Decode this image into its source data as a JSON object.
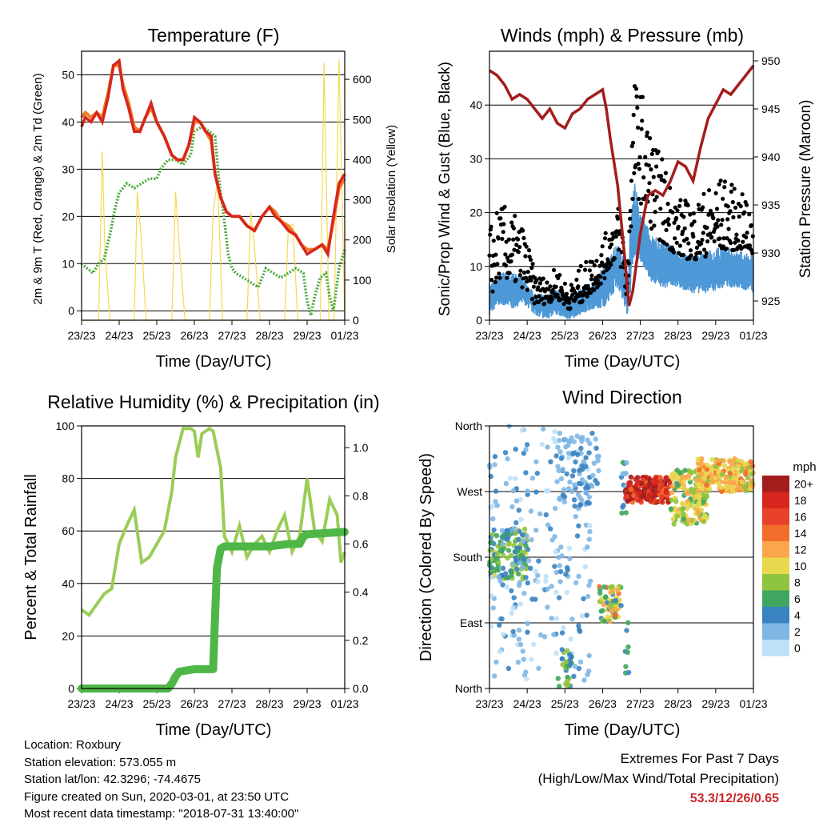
{
  "panels": {
    "temperature": {
      "title": "Temperature (F)",
      "xlabel": "Time (Day/UTC)",
      "ylabel_left": "2m & 9m T (Red, Orange) & 2m Td (Green)",
      "ylabel_right": "Solar Insolation (Yellow)"
    },
    "winds": {
      "title": "Winds (mph) & Pressure (mb)",
      "xlabel": "Time (Day/UTC)",
      "ylabel_left": "Sonic/Prop Wind & Gust (Blue, Black)",
      "ylabel_right": "Station Pressure (Maroon)"
    },
    "humidity": {
      "title": "Relative Humidity (%) & Precipitation (in)",
      "xlabel": "Time (Day/UTC)",
      "ylabel_left": "Percent & Total Rainfall"
    },
    "direction": {
      "title": "Wind Direction",
      "xlabel": "Time (Day/UTC)",
      "ylabel_left": "Direction (Colored By Speed)",
      "legend_title": "mph"
    }
  },
  "footer": {
    "location": "Location: Roxbury",
    "elevation": "Station elevation: 573.055 m",
    "latlon": "Station lat/lon: 42.3296; -74.4675",
    "created": "Figure created on Sun, 2020-03-01, at 23:50 UTC",
    "timestamp": "Most recent data timestamp: \"2018-07-31 13:40:00\"",
    "extremes_title": "Extremes For Past 7 Days",
    "extremes_sub": "(High/Low/Max Wind/Total Precipitation)",
    "extremes_values": "53.3/12/26/0.65"
  },
  "chart_data": [
    {
      "id": "temperature",
      "type": "line",
      "x_ticks": [
        "23/23",
        "24/23",
        "25/23",
        "26/23",
        "27/23",
        "28/23",
        "29/23",
        "01/23"
      ],
      "xlim": [
        0,
        7
      ],
      "ylim": [
        -2,
        55
      ],
      "y_ticks": [
        0,
        10,
        20,
        30,
        40,
        50
      ],
      "y2lim": [
        0,
        670
      ],
      "y2_ticks": [
        0,
        100,
        200,
        300,
        400,
        500,
        600
      ],
      "grid_y": true,
      "colors": {
        "t2m": "#d7261e",
        "t9m": "#f07e26",
        "td2m": "#4aa83c",
        "solar": "#f7d854"
      },
      "series": [
        {
          "key": "t2m",
          "x": [
            0,
            0.1,
            0.25,
            0.4,
            0.55,
            0.7,
            0.85,
            1.0,
            1.1,
            1.25,
            1.4,
            1.55,
            1.7,
            1.85,
            2.0,
            2.2,
            2.4,
            2.55,
            2.7,
            2.85,
            3.0,
            3.15,
            3.3,
            3.45,
            3.55,
            3.7,
            3.85,
            4.0,
            4.2,
            4.4,
            4.6,
            4.8,
            5.0,
            5.15,
            5.3,
            5.5,
            5.7,
            5.85,
            6.0,
            6.2,
            6.4,
            6.55,
            6.7,
            6.85,
            7.0
          ],
          "y": [
            39,
            41,
            40,
            42,
            40,
            45,
            52,
            53,
            47,
            43,
            38,
            38,
            41,
            44,
            40,
            37,
            33,
            32,
            32,
            35,
            41,
            40,
            38,
            37,
            29,
            24,
            21,
            20,
            20,
            18,
            17,
            20,
            22,
            20,
            19,
            17,
            16,
            14,
            12,
            13,
            14,
            12,
            20,
            27,
            29
          ]
        },
        {
          "key": "t9m",
          "x": [
            0,
            0.1,
            0.25,
            0.4,
            0.55,
            0.7,
            0.85,
            1.0,
            1.1,
            1.25,
            1.4,
            1.55,
            1.7,
            1.85,
            2.0,
            2.2,
            2.4,
            2.55,
            2.7,
            2.85,
            3.0,
            3.15,
            3.3,
            3.45,
            3.55,
            3.7,
            3.85,
            4.0,
            4.2,
            4.4,
            4.6,
            4.8,
            5.0,
            5.15,
            5.3,
            5.5,
            5.7,
            5.85,
            6.0,
            6.2,
            6.4,
            6.55,
            6.7,
            6.85,
            7.0
          ],
          "y": [
            41,
            42,
            41,
            42,
            41,
            46,
            52,
            52,
            48,
            44,
            39,
            38,
            41,
            43,
            40,
            37,
            33,
            32,
            32,
            35,
            40,
            40,
            38,
            36,
            29,
            24,
            21,
            20,
            20,
            18,
            17,
            20,
            22,
            21,
            19,
            18,
            16,
            14,
            13,
            13,
            14,
            13,
            19,
            26,
            28
          ]
        },
        {
          "key": "td2m",
          "x": [
            0,
            0.15,
            0.3,
            0.45,
            0.6,
            0.75,
            0.9,
            1.0,
            1.2,
            1.4,
            1.6,
            1.8,
            2.0,
            2.1,
            2.3,
            2.5,
            2.7,
            2.9,
            3.0,
            3.2,
            3.4,
            3.55,
            3.65,
            3.8,
            3.9,
            4.0,
            4.1,
            4.3,
            4.5,
            4.7,
            4.9,
            5.1,
            5.3,
            5.5,
            5.7,
            5.9,
            6.0,
            6.1,
            6.2,
            6.35,
            6.5,
            6.6,
            6.7,
            6.85,
            7.0
          ],
          "y": [
            10,
            9,
            8,
            10,
            11,
            16,
            22,
            25,
            27,
            26,
            27,
            28,
            28,
            30,
            32,
            32,
            31,
            33,
            38,
            39,
            38,
            37,
            28,
            19,
            12,
            9,
            8,
            7,
            6,
            5,
            9,
            8,
            7,
            8,
            9,
            8,
            2,
            -1,
            3,
            7,
            8,
            3,
            0,
            9,
            13
          ]
        },
        {
          "key": "solar",
          "x": [
            0,
            0.45,
            0.55,
            0.62,
            0.75,
            1.4,
            1.48,
            1.58,
            1.72,
            2.4,
            2.5,
            2.62,
            2.75,
            3.4,
            3.5,
            3.62,
            3.75,
            4.4,
            4.5,
            4.6,
            4.75,
            5.4,
            5.5,
            5.62,
            5.75,
            6.35,
            6.45,
            6.58,
            6.72,
            6.85,
            7.0
          ],
          "y": [
            0,
            0,
            420,
            180,
            0,
            0,
            320,
            210,
            0,
            0,
            320,
            160,
            0,
            0,
            270,
            350,
            0,
            0,
            270,
            180,
            0,
            0,
            230,
            240,
            0,
            0,
            640,
            0,
            0,
            650,
            0
          ]
        }
      ]
    },
    {
      "id": "winds",
      "type": "line+scatter",
      "x_ticks": [
        "23/23",
        "24/23",
        "25/23",
        "26/23",
        "27/23",
        "28/23",
        "29/23",
        "01/23"
      ],
      "xlim": [
        0,
        7
      ],
      "ylim": [
        0,
        50
      ],
      "y_ticks": [
        0,
        10,
        20,
        30,
        40
      ],
      "y2lim": [
        923,
        951
      ],
      "y2_ticks": [
        925,
        930,
        935,
        940,
        945,
        950
      ],
      "grid_y": true,
      "colors": {
        "wind": "#4d98d6",
        "gust": "#000000",
        "pressure": "#a31d1d"
      },
      "pressure": {
        "x": [
          0,
          0.2,
          0.4,
          0.6,
          0.8,
          1.0,
          1.2,
          1.4,
          1.6,
          1.8,
          2.0,
          2.2,
          2.4,
          2.6,
          2.8,
          3.0,
          3.1,
          3.2,
          3.4,
          3.6,
          3.7,
          3.8,
          3.9,
          4.0,
          4.1,
          4.2,
          4.4,
          4.6,
          4.8,
          5.0,
          5.2,
          5.4,
          5.6,
          5.8,
          6.0,
          6.2,
          6.4,
          6.6,
          6.8,
          7.0
        ],
        "y": [
          949,
          948.5,
          947.5,
          946,
          946.5,
          946,
          945,
          944,
          945,
          943.5,
          943,
          944.5,
          945,
          946,
          946.5,
          947,
          945,
          942,
          937,
          929,
          924.5,
          926,
          929,
          932,
          934,
          936,
          936.5,
          936,
          937.5,
          939.5,
          939,
          937.5,
          941,
          944,
          945.5,
          947,
          946.5,
          947.5,
          948.5,
          949.5
        ]
      },
      "wind_envelope": {
        "x": [
          0,
          0.3,
          0.6,
          0.9,
          1.2,
          1.5,
          1.8,
          2.1,
          2.4,
          2.7,
          3.0,
          3.2,
          3.4,
          3.55,
          3.65,
          3.75,
          3.85,
          4.0,
          4.3,
          4.6,
          5.0,
          5.4,
          5.8,
          6.2,
          6.6,
          7.0
        ],
        "low": [
          1,
          3,
          2,
          3,
          1,
          0,
          1,
          0,
          1,
          2,
          2,
          4,
          6,
          3,
          1,
          5,
          12,
          11,
          7,
          6,
          6,
          5,
          5,
          6,
          6,
          5
        ],
        "high": [
          7,
          9,
          9,
          8,
          5,
          5,
          6,
          4,
          6,
          7,
          10,
          12,
          15,
          12,
          5,
          20,
          26,
          20,
          16,
          15,
          13,
          12,
          13,
          14,
          13,
          12
        ]
      },
      "gust_envelope": {
        "x": [
          0,
          0.3,
          0.6,
          0.9,
          1.2,
          1.5,
          1.8,
          2.1,
          2.4,
          2.7,
          3.0,
          3.2,
          3.4,
          3.55,
          3.65,
          3.75,
          3.85,
          4.0,
          4.3,
          4.6,
          5.0,
          5.4,
          5.8,
          6.2,
          6.6,
          7.0
        ],
        "low": [
          4,
          8,
          7,
          6,
          3,
          3,
          4,
          2,
          3,
          5,
          7,
          10,
          12,
          8,
          3,
          17,
          24,
          22,
          17,
          14,
          12,
          11,
          12,
          13,
          13,
          12
        ],
        "high": [
          18,
          22,
          20,
          18,
          9,
          8,
          10,
          6,
          10,
          12,
          15,
          18,
          22,
          18,
          8,
          35,
          45,
          44,
          35,
          30,
          23,
          22,
          25,
          27,
          24,
          22
        ]
      }
    },
    {
      "id": "humidity",
      "type": "line",
      "x_ticks": [
        "23/23",
        "24/23",
        "25/23",
        "26/23",
        "27/23",
        "28/23",
        "29/23",
        "01/23"
      ],
      "xlim": [
        0,
        7
      ],
      "ylim": [
        0,
        100
      ],
      "y_ticks": [
        0,
        20,
        40,
        60,
        80,
        100
      ],
      "y2lim": [
        0,
        1.09
      ],
      "y2_ticks": [
        "0.0",
        "0.2",
        "0.4",
        "0.6",
        "0.8",
        "1.0"
      ],
      "grid_y": true,
      "colors": {
        "rh": "#9acd57",
        "precip": "#4eb747"
      },
      "series": [
        {
          "key": "rh",
          "x": [
            0,
            0.2,
            0.4,
            0.6,
            0.8,
            1.0,
            1.2,
            1.4,
            1.6,
            1.8,
            2.0,
            2.2,
            2.4,
            2.5,
            2.7,
            2.9,
            3.0,
            3.1,
            3.2,
            3.4,
            3.5,
            3.7,
            3.8,
            4.0,
            4.2,
            4.4,
            4.6,
            4.8,
            5.0,
            5.2,
            5.4,
            5.6,
            5.8,
            6.0,
            6.2,
            6.4,
            6.6,
            6.8,
            6.9,
            7.0
          ],
          "y": [
            30,
            28,
            32,
            36,
            38,
            55,
            62,
            68,
            48,
            50,
            55,
            60,
            75,
            88,
            99,
            99,
            98,
            88,
            97,
            99,
            98,
            84,
            58,
            52,
            62,
            50,
            55,
            58,
            52,
            60,
            66,
            52,
            58,
            80,
            60,
            56,
            72,
            66,
            48,
            52
          ]
        },
        {
          "key": "precip",
          "x": [
            0,
            2.3,
            2.4,
            2.5,
            2.6,
            3.0,
            3.5,
            3.55,
            3.6,
            3.7,
            3.8,
            4.0,
            5.0,
            5.5,
            5.8,
            5.9,
            6.0,
            7.0
          ],
          "y": [
            0,
            0,
            0.02,
            0.05,
            0.07,
            0.08,
            0.08,
            0.3,
            0.5,
            0.58,
            0.59,
            0.59,
            0.59,
            0.6,
            0.6,
            0.63,
            0.64,
            0.65
          ]
        }
      ]
    },
    {
      "id": "direction",
      "type": "scatter",
      "x_ticks": [
        "23/23",
        "24/23",
        "25/23",
        "26/23",
        "27/23",
        "28/23",
        "29/23",
        "01/23"
      ],
      "xlim": [
        0,
        7
      ],
      "ylim": [
        0,
        360
      ],
      "y_tick_values": [
        0,
        90,
        180,
        270,
        360
      ],
      "y_tick_labels": [
        "North",
        "East",
        "South",
        "West",
        "North"
      ],
      "grid_y": true,
      "legend_labels": [
        "20+",
        "18",
        "16",
        "14",
        "12",
        "10",
        "8",
        "6",
        "4",
        "2",
        "0"
      ],
      "legend_colors": [
        "#a31d1d",
        "#d7261e",
        "#e8412a",
        "#f26c2b",
        "#fba64a",
        "#e8d84e",
        "#8fc43f",
        "#3ea660",
        "#3a83c1",
        "#7fb7e4",
        "#bfe1f7"
      ],
      "clusters": [
        {
          "x": [
            0.0,
            1.0
          ],
          "y": [
            150,
            220
          ],
          "speed": [
            3,
            10
          ],
          "n": 140
        },
        {
          "x": [
            0.0,
            2.7
          ],
          "y": [
            10,
            360
          ],
          "speed": [
            0,
            4
          ],
          "n": 220
        },
        {
          "x": [
            1.8,
            2.9
          ],
          "y": [
            250,
            350
          ],
          "speed": [
            1,
            5
          ],
          "n": 80
        },
        {
          "x": [
            1.8,
            2.2
          ],
          "y": [
            0,
            60
          ],
          "speed": [
            3,
            8
          ],
          "n": 30
        },
        {
          "x": [
            2.9,
            3.5
          ],
          "y": [
            90,
            140
          ],
          "speed": [
            4,
            14
          ],
          "n": 70
        },
        {
          "x": [
            3.5,
            3.65
          ],
          "y": [
            230,
            310
          ],
          "speed": [
            1,
            6
          ],
          "n": 15
        },
        {
          "x": [
            3.6,
            3.7
          ],
          "y": [
            20,
            100
          ],
          "speed": [
            3,
            7
          ],
          "n": 8
        },
        {
          "x": [
            3.6,
            4.8
          ],
          "y": [
            255,
            290
          ],
          "speed": [
            14,
            22
          ],
          "n": 200
        },
        {
          "x": [
            4.8,
            5.8
          ],
          "y": [
            225,
            300
          ],
          "speed": [
            6,
            12
          ],
          "n": 170
        },
        {
          "x": [
            5.5,
            7.0
          ],
          "y": [
            270,
            315
          ],
          "speed": [
            8,
            14
          ],
          "n": 220
        }
      ]
    }
  ]
}
